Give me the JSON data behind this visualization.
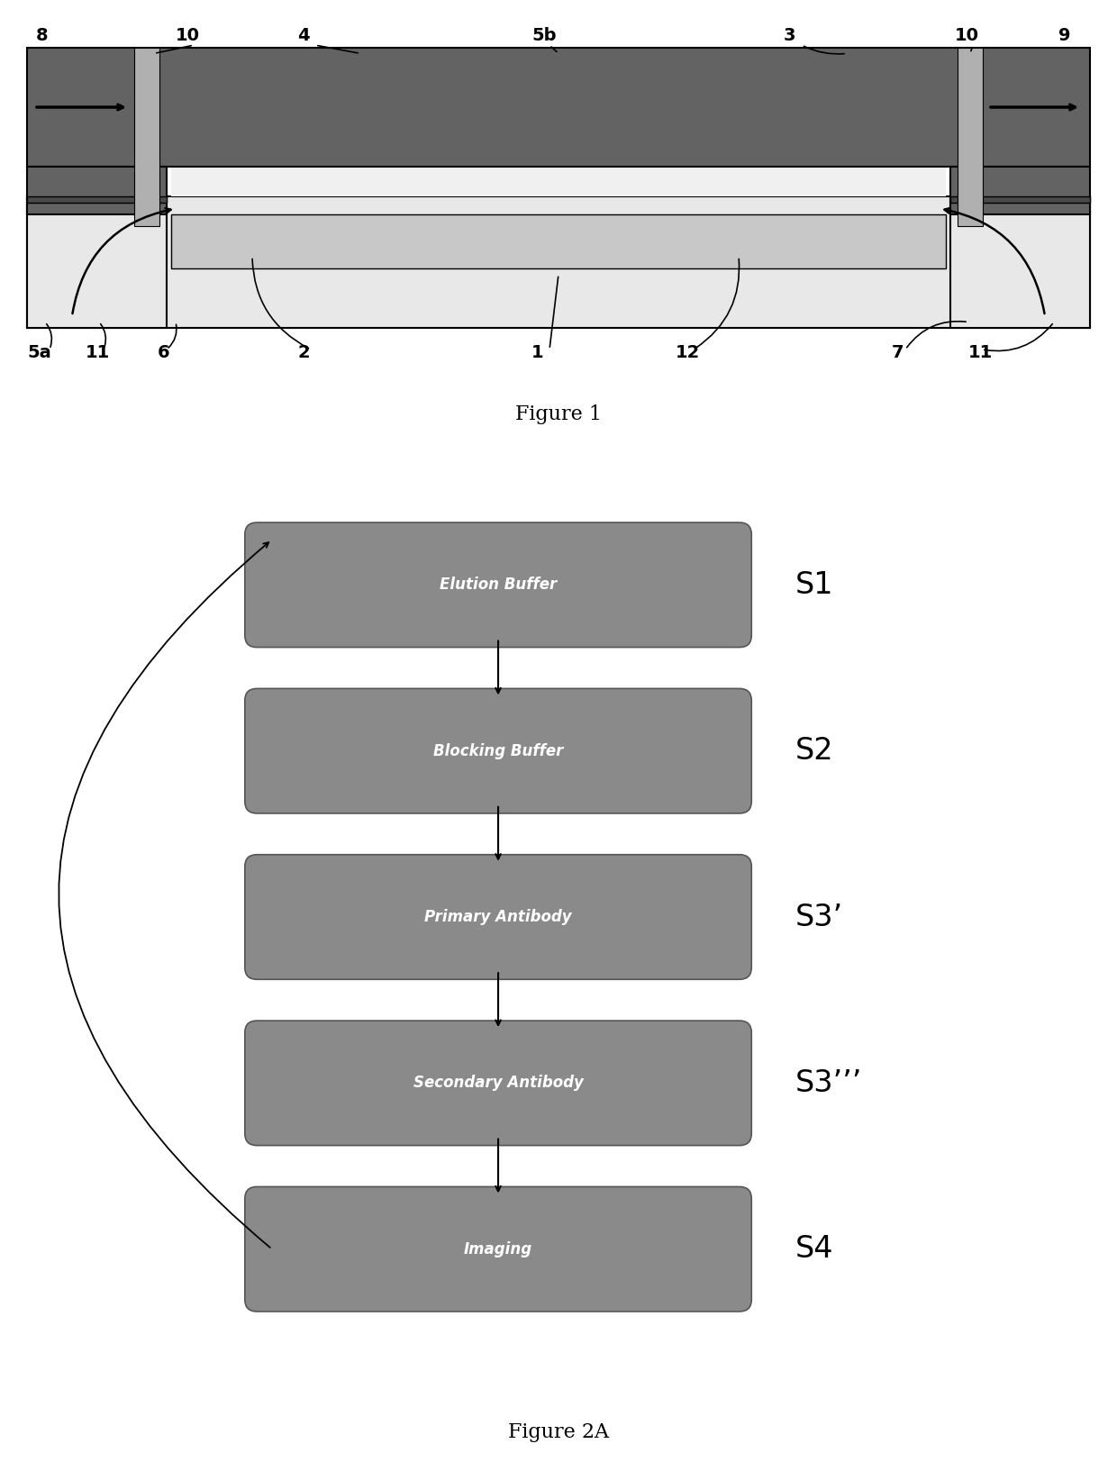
{
  "fig_width": 12.4,
  "fig_height": 16.43,
  "bg_color": "#ffffff",
  "fig1_title": "Figure 1",
  "fig2_title": "Figure 2A",
  "dark_gray": "#636363",
  "med_gray": "#909090",
  "light_gray": "#c8c8c8",
  "very_light_gray": "#e8e8e8",
  "channel_color": "#f0f0f0",
  "slot_color": "#b0b0b0",
  "box_fill": "#8a8a8a",
  "box_edge": "#555555",
  "box_text_color": "#ffffff",
  "flow_boxes": [
    {
      "label": "Elution Buffer",
      "step": "S1"
    },
    {
      "label": "Blocking Buffer",
      "step": "S2"
    },
    {
      "label": "Primary Antibody",
      "step": "S3’"
    },
    {
      "label": "Secondary Antibody",
      "step": "S3’’’"
    },
    {
      "label": "Imaging",
      "step": "S4"
    }
  ]
}
